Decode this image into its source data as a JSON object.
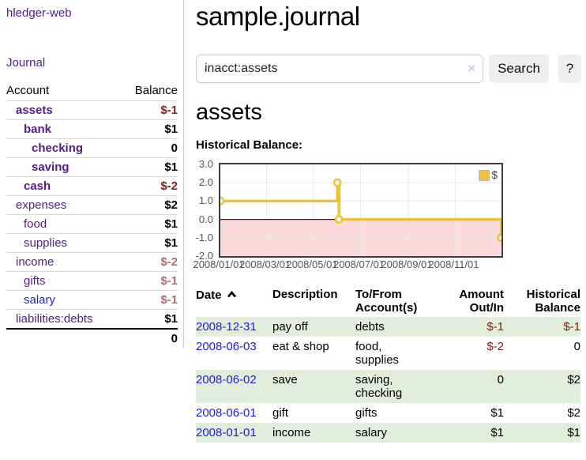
{
  "app": {
    "brand": "hledger-web",
    "nav_journal": "Journal"
  },
  "sidebar": {
    "columns": {
      "account": "Account",
      "balance": "Balance"
    },
    "accounts": [
      {
        "name": "assets",
        "balance": "$-1"
      },
      {
        "name": "bank",
        "balance": "$1"
      },
      {
        "name": "checking",
        "balance": "0"
      },
      {
        "name": "saving",
        "balance": "$1"
      },
      {
        "name": "cash",
        "balance": "$-2"
      },
      {
        "name": "expenses",
        "balance": "$2"
      },
      {
        "name": "food",
        "balance": "$1"
      },
      {
        "name": "supplies",
        "balance": "$1"
      },
      {
        "name": "income",
        "balance": "$-2"
      },
      {
        "name": "gifts",
        "balance": "$-1"
      },
      {
        "name": "salary",
        "balance": "$-1"
      },
      {
        "name": "liabilities:debts",
        "balance": "$1"
      }
    ],
    "total": "0"
  },
  "main": {
    "title": "sample.journal",
    "search": {
      "value": "inacct:assets",
      "clear_icon": "×",
      "search_button": "Search",
      "help_button": "?"
    },
    "account_heading": "assets",
    "chart_title": "Historical Balance:"
  },
  "chart_data": {
    "type": "line",
    "title": "Historical Balance:",
    "series": [
      {
        "name": "$",
        "color": "#edc240",
        "points": [
          [
            "2008-01-01",
            1
          ],
          [
            "2008-06-01",
            2
          ],
          [
            "2008-06-03",
            0
          ],
          [
            "2008-12-31",
            -1
          ]
        ]
      }
    ],
    "step": true,
    "xlim": [
      "2008-01-01",
      "2008-12-31"
    ],
    "ylim": [
      -2,
      3
    ],
    "yticks": [
      "3.0",
      "2.0",
      "1.0",
      "0.0",
      "-1.0",
      "-2.0"
    ],
    "xticks": [
      "2008/01/01",
      "2008/03/01",
      "2008/05/01",
      "2008/07/01",
      "2008/09/01",
      "2008/11/01"
    ],
    "grid": true,
    "grid_color": "#e7e7e7",
    "zero_line_color": "#8b0000",
    "negative_region_color": "#fbdbdb",
    "legend": {
      "label": "$",
      "position": "top-right"
    }
  },
  "register": {
    "headers": {
      "date": "Date",
      "description": "Description",
      "accounts": "To/From Account(s)",
      "amount": "Amount Out/In",
      "balance": "Historical Balance"
    },
    "rows": [
      {
        "date": "2008-12-31",
        "description": "pay off",
        "accounts": "debts",
        "amount": "$-1",
        "balance": "$-1"
      },
      {
        "date": "2008-06-03",
        "description": "eat & shop",
        "accounts": "food, supplies",
        "amount": "$-2",
        "balance": "0"
      },
      {
        "date": "2008-06-02",
        "description": "save",
        "accounts": "saving, checking",
        "amount": "0",
        "balance": "$2"
      },
      {
        "date": "2008-06-01",
        "description": "gift",
        "accounts": "gifts",
        "amount": "$1",
        "balance": "$2"
      },
      {
        "date": "2008-01-01",
        "description": "income",
        "accounts": "salary",
        "amount": "$1",
        "balance": "$1"
      }
    ]
  }
}
